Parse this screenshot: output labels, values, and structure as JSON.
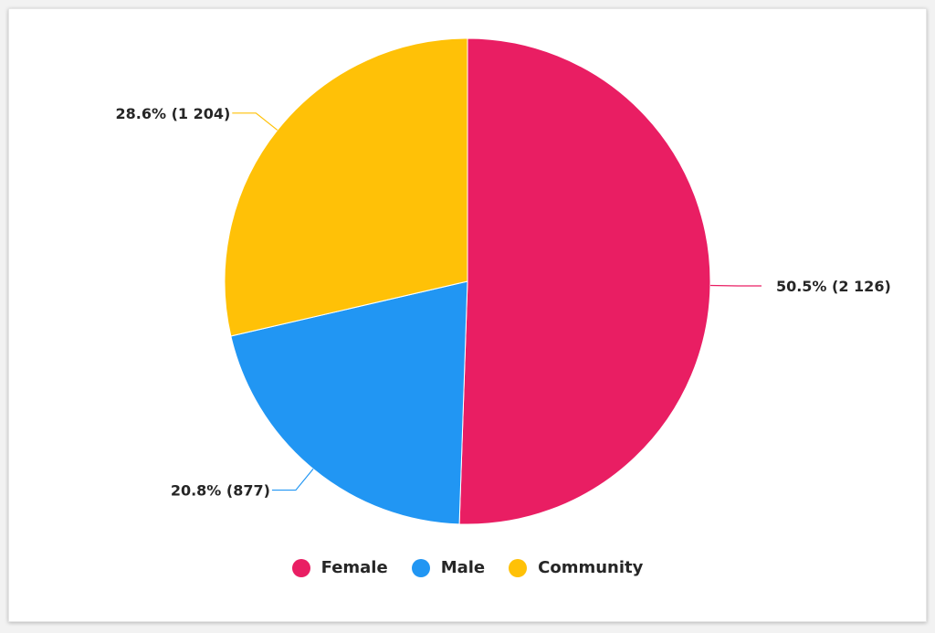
{
  "chart_data": {
    "type": "pie",
    "start": "12 o'clock",
    "direction": "clockwise",
    "slices": [
      {
        "name": "Female",
        "value": 2126,
        "percent": 50.5,
        "label": "50.5% (2 126)",
        "color": "#e91e63"
      },
      {
        "name": "Male",
        "value": 877,
        "percent": 20.8,
        "label": "20.8% (877)",
        "color": "#2196f3"
      },
      {
        "name": "Community",
        "value": 1204,
        "percent": 28.6,
        "label": "28.6% (1 204)",
        "color": "#ffc107"
      }
    ],
    "legend_position": "bottom"
  }
}
